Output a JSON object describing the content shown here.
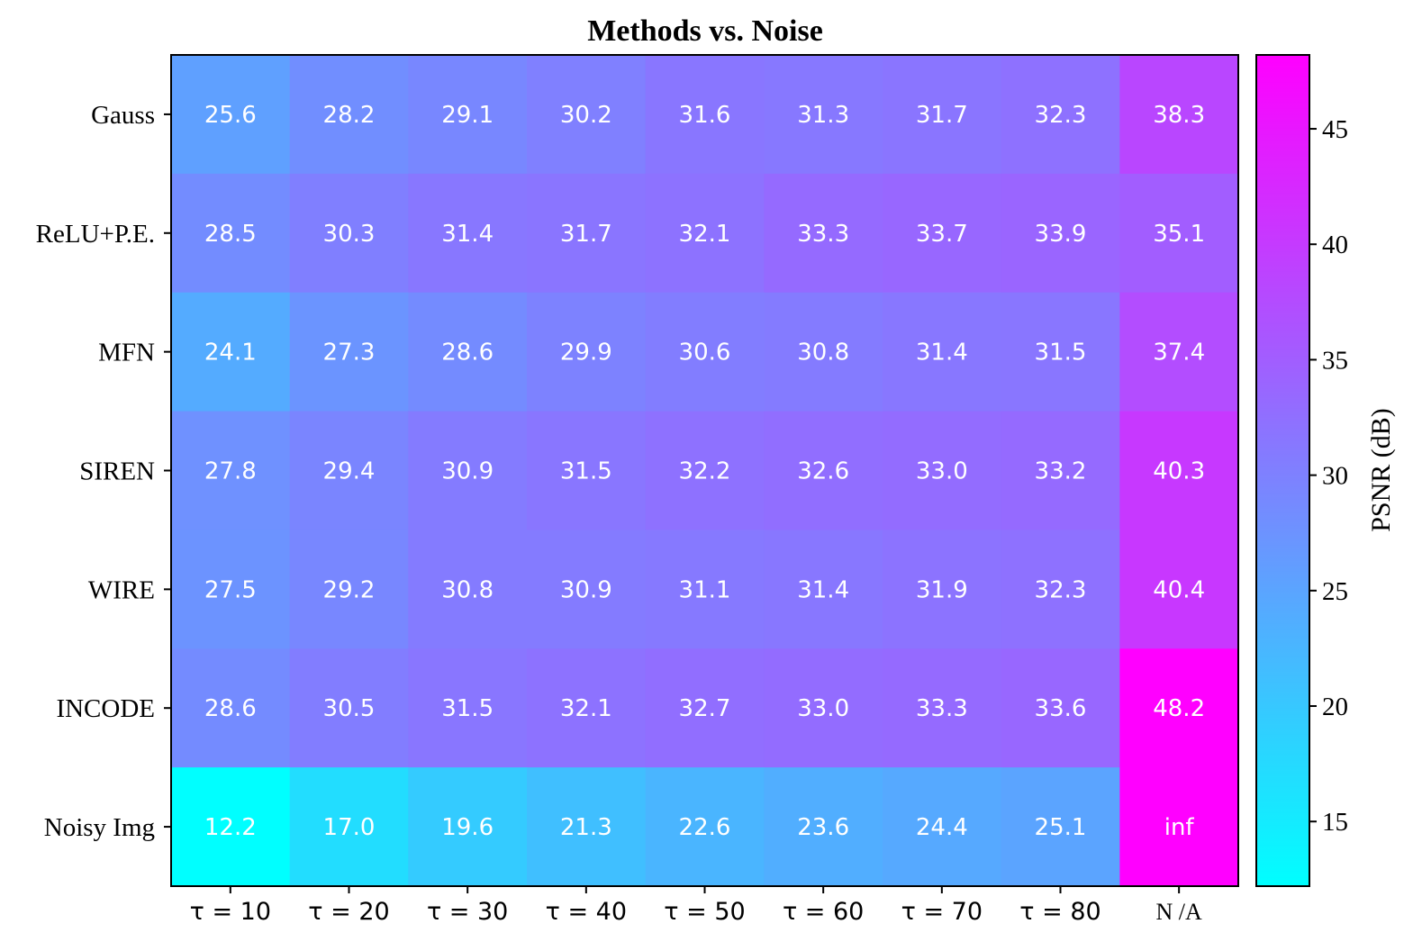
{
  "chart_data": {
    "type": "heatmap",
    "title": "Methods vs. Noise",
    "rows": [
      "Gauss",
      "ReLU+P.E.",
      "MFN",
      "SIREN",
      "WIRE",
      "INCODE",
      "Noisy Img"
    ],
    "columns": [
      "τ = 10",
      "τ = 20",
      "τ = 30",
      "τ = 40",
      "τ = 50",
      "τ = 60",
      "τ = 70",
      "τ = 80",
      "N /A"
    ],
    "values": [
      [
        25.6,
        28.2,
        29.1,
        30.2,
        31.6,
        31.3,
        31.7,
        32.3,
        38.3
      ],
      [
        28.5,
        30.3,
        31.4,
        31.7,
        32.1,
        33.3,
        33.7,
        33.9,
        35.1
      ],
      [
        24.1,
        27.3,
        28.6,
        29.9,
        30.6,
        30.8,
        31.4,
        31.5,
        37.4
      ],
      [
        27.8,
        29.4,
        30.9,
        31.5,
        32.2,
        32.6,
        33.0,
        33.2,
        40.3
      ],
      [
        27.5,
        29.2,
        30.8,
        30.9,
        31.1,
        31.4,
        31.9,
        32.3,
        40.4
      ],
      [
        28.6,
        30.5,
        31.5,
        32.1,
        32.7,
        33.0,
        33.3,
        33.6,
        48.2
      ],
      [
        12.2,
        17.0,
        19.6,
        21.3,
        22.6,
        23.6,
        24.4,
        25.1,
        "inf"
      ]
    ],
    "colormap": {
      "name": "cool",
      "low": "#00ffff",
      "high": "#ff00ff"
    },
    "colorbar": {
      "label": "PSNR (dB)",
      "range": [
        12.2,
        48.2
      ],
      "ticks": [
        15,
        20,
        25,
        30,
        35,
        40,
        45
      ]
    },
    "grid": false
  }
}
